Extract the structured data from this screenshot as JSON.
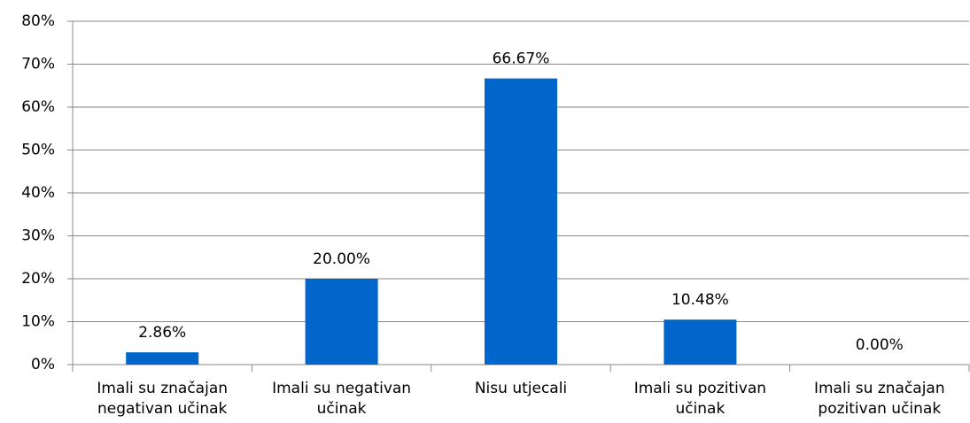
{
  "chart_data": {
    "type": "bar",
    "categories": [
      "Imali su značajan negativan učinak",
      "Imali su negativan učinak",
      "Nisu utjecali",
      "Imali su pozitivan učinak",
      "Imali su značajan pozitivan učinak"
    ],
    "values": [
      2.86,
      20.0,
      66.67,
      10.48,
      0.0
    ],
    "value_labels": [
      "2.86%",
      "20.00%",
      "66.67%",
      "10.48%",
      "0.00%"
    ],
    "color": "#0066cc",
    "ylim": [
      0,
      80
    ],
    "yticks": [
      {
        "value": 0,
        "label": "0%"
      },
      {
        "value": 10,
        "label": "10%"
      },
      {
        "value": 20,
        "label": "20%"
      },
      {
        "value": 30,
        "label": "30%"
      },
      {
        "value": 40,
        "label": "40%"
      },
      {
        "value": 50,
        "label": "50%"
      },
      {
        "value": 60,
        "label": "60%"
      },
      {
        "value": 70,
        "label": "70%"
      },
      {
        "value": 80,
        "label": "80%"
      }
    ],
    "grid": true
  }
}
